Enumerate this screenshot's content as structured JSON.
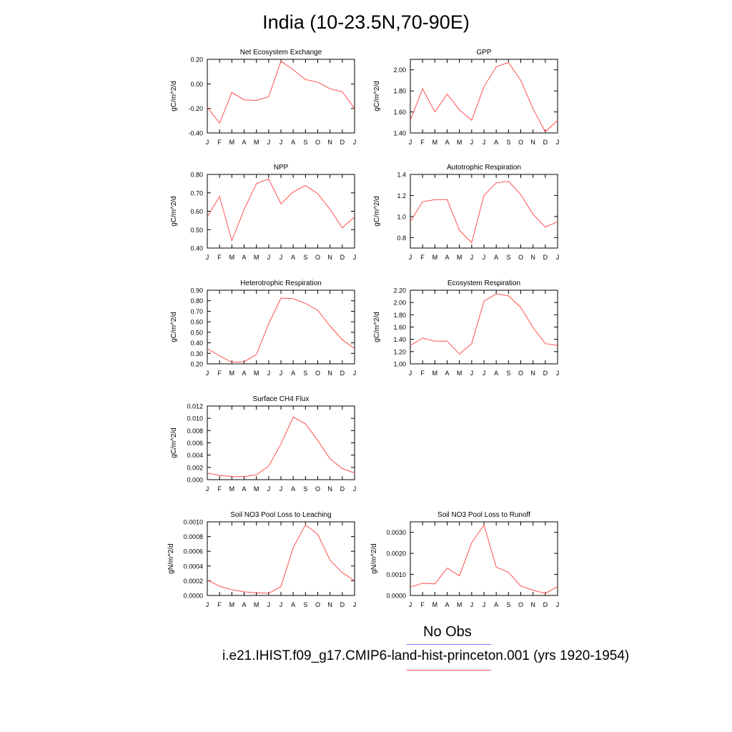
{
  "title": "India (10-23.5N,70-90E)",
  "legend": {
    "obs_label": "No Obs",
    "obs_color": "#7070ff",
    "model_label": "i.e21.IHIST.f09_g17.CMIP6-land-hist-princeton.001 (yrs 1920-1954)",
    "model_color": "#ff5050"
  },
  "chart_data": [
    {
      "type": "line",
      "title": "Net Ecosystem Exchange",
      "ylabel": "gC/m^2/d",
      "x": [
        "J",
        "F",
        "M",
        "A",
        "M",
        "J",
        "J",
        "A",
        "S",
        "O",
        "N",
        "D",
        "J"
      ],
      "ylim": [
        -0.4,
        0.2
      ],
      "yticks": [
        "-0.40",
        "-0.20",
        "0.00",
        "0.20"
      ],
      "series": [
        {
          "values": [
            -0.19,
            -0.32,
            -0.07,
            -0.13,
            -0.135,
            -0.105,
            0.185,
            0.115,
            0.035,
            0.015,
            -0.04,
            -0.065,
            -0.2
          ]
        }
      ]
    },
    {
      "type": "line",
      "title": "GPP",
      "ylabel": "gC/m^2/d",
      "x": [
        "J",
        "F",
        "M",
        "A",
        "M",
        "J",
        "J",
        "A",
        "S",
        "O",
        "N",
        "D",
        "J"
      ],
      "ylim": [
        1.4,
        2.1
      ],
      "yticks": [
        "1.40",
        "1.60",
        "1.80",
        "2.00"
      ],
      "series": [
        {
          "values": [
            1.52,
            1.82,
            1.6,
            1.77,
            1.62,
            1.52,
            1.84,
            2.03,
            2.07,
            1.9,
            1.63,
            1.41,
            1.52
          ]
        }
      ]
    },
    {
      "type": "line",
      "title": "NPP",
      "ylabel": "gC/m^2/d",
      "x": [
        "J",
        "F",
        "M",
        "A",
        "M",
        "J",
        "J",
        "A",
        "S",
        "O",
        "N",
        "D",
        "J"
      ],
      "ylim": [
        0.4,
        0.8
      ],
      "yticks": [
        "0.40",
        "0.50",
        "0.60",
        "0.70",
        "0.80"
      ],
      "series": [
        {
          "values": [
            0.57,
            0.68,
            0.44,
            0.61,
            0.75,
            0.775,
            0.64,
            0.705,
            0.74,
            0.695,
            0.61,
            0.51,
            0.57
          ]
        }
      ]
    },
    {
      "type": "line",
      "title": "Autotrophic Respiration",
      "ylabel": "gC/m^2/d",
      "x": [
        "J",
        "F",
        "M",
        "A",
        "M",
        "J",
        "J",
        "A",
        "S",
        "O",
        "N",
        "D",
        "J"
      ],
      "ylim": [
        0.7,
        1.4
      ],
      "yticks": [
        "0.8",
        "1.0",
        "1.2",
        "1.4"
      ],
      "series": [
        {
          "values": [
            0.95,
            1.14,
            1.16,
            1.16,
            0.87,
            0.75,
            1.2,
            1.32,
            1.335,
            1.21,
            1.02,
            0.9,
            0.95
          ]
        }
      ]
    },
    {
      "type": "line",
      "title": "Heterotrophic Respiration",
      "ylabel": "gC/m^2/d",
      "x": [
        "J",
        "F",
        "M",
        "A",
        "M",
        "J",
        "J",
        "A",
        "S",
        "O",
        "N",
        "D",
        "J"
      ],
      "ylim": [
        0.2,
        0.9
      ],
      "yticks": [
        "0.20",
        "0.30",
        "0.40",
        "0.50",
        "0.60",
        "0.70",
        "0.80",
        "0.90"
      ],
      "series": [
        {
          "values": [
            0.345,
            0.275,
            0.215,
            0.22,
            0.29,
            0.58,
            0.825,
            0.82,
            0.775,
            0.71,
            0.56,
            0.43,
            0.345
          ]
        }
      ]
    },
    {
      "type": "line",
      "title": "Ecosystem Respiration",
      "ylabel": "gC/m^2/d",
      "x": [
        "J",
        "F",
        "M",
        "A",
        "M",
        "J",
        "J",
        "A",
        "S",
        "O",
        "N",
        "D",
        "J"
      ],
      "ylim": [
        1.0,
        2.2
      ],
      "yticks": [
        "1.00",
        "1.20",
        "1.40",
        "1.60",
        "1.80",
        "2.00",
        "2.20"
      ],
      "series": [
        {
          "values": [
            1.3,
            1.42,
            1.37,
            1.37,
            1.16,
            1.33,
            2.02,
            2.14,
            2.11,
            1.92,
            1.59,
            1.33,
            1.3
          ]
        }
      ]
    },
    {
      "type": "line",
      "title": "Surface CH4 Flux",
      "ylabel": "gC/m^2/d",
      "x": [
        "J",
        "F",
        "M",
        "A",
        "M",
        "J",
        "J",
        "A",
        "S",
        "O",
        "N",
        "D",
        "J"
      ],
      "ylim": [
        0.0,
        0.012
      ],
      "yticks": [
        "0.000",
        "0.002",
        "0.004",
        "0.006",
        "0.008",
        "0.010",
        "0.012"
      ],
      "series": [
        {
          "values": [
            0.0011,
            0.0007,
            0.0005,
            0.0005,
            0.0008,
            0.0022,
            0.0058,
            0.0102,
            0.0091,
            0.0064,
            0.0034,
            0.0018,
            0.0011
          ]
        }
      ]
    },
    {
      "type": "line",
      "title": "Soil NO3 Pool Loss to Leaching",
      "ylabel": "gN/m^2/d",
      "x": [
        "J",
        "F",
        "M",
        "A",
        "M",
        "J",
        "J",
        "A",
        "S",
        "O",
        "N",
        "D",
        "J"
      ],
      "ylim": [
        0.0,
        0.001
      ],
      "yticks": [
        "0.0000",
        "0.0002",
        "0.0004",
        "0.0006",
        "0.0008",
        "0.0010"
      ],
      "series": [
        {
          "values": [
            0.00021,
            0.000125,
            8e-05,
            5e-05,
            3.5e-05,
            3e-05,
            0.00012,
            0.00065,
            0.00096,
            0.00083,
            0.00048,
            0.00031,
            0.0002
          ]
        }
      ]
    },
    {
      "type": "line",
      "title": "Soil NO3 Pool Loss to Runoff",
      "ylabel": "gN/m^2/d",
      "x": [
        "J",
        "F",
        "M",
        "A",
        "M",
        "J",
        "J",
        "A",
        "S",
        "O",
        "N",
        "D",
        "J"
      ],
      "ylim": [
        0.0,
        0.0035
      ],
      "yticks": [
        "0.0000",
        "0.0010",
        "0.0020",
        "0.0030"
      ],
      "series": [
        {
          "values": [
            0.0004,
            0.00058,
            0.00055,
            0.0013,
            0.00093,
            0.0025,
            0.00335,
            0.00135,
            0.0011,
            0.00045,
            0.00025,
            0.0001,
            0.00042
          ]
        }
      ]
    }
  ]
}
